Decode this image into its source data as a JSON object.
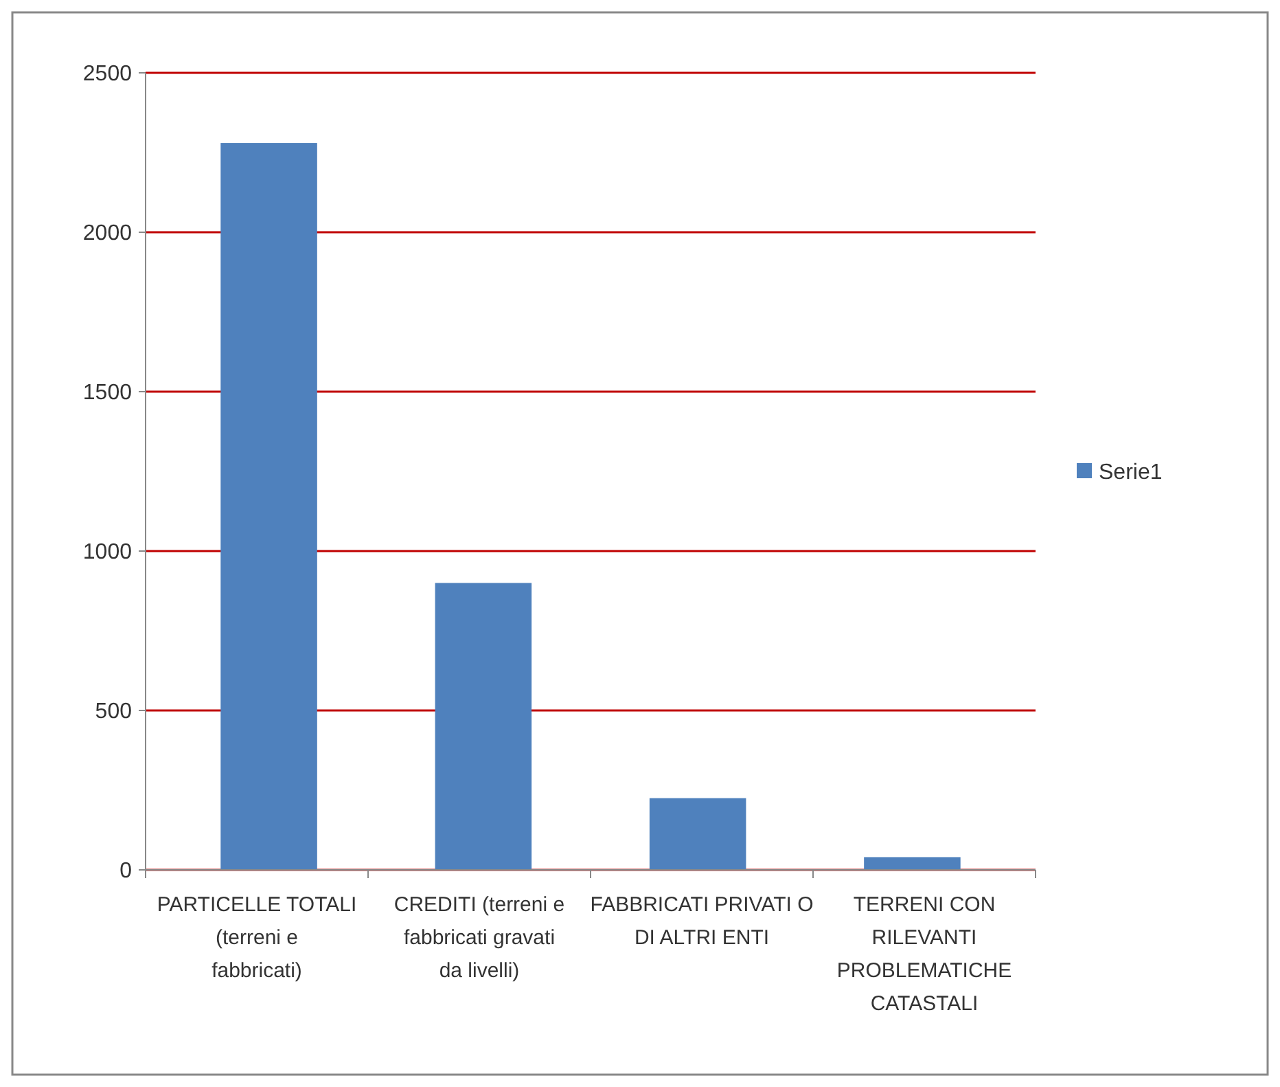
{
  "chart_data": {
    "type": "bar",
    "categories": [
      "PARTICELLE TOTALI (terreni e fabbricati)",
      "CREDITI (terreni e fabbricati gravati da livelli)",
      "FABBRICATI PRIVATI O DI ALTRI ENTI",
      "TERRENI CON RILEVANTI PROBLEMATICHE CATASTALI"
    ],
    "series": [
      {
        "name": "Serie1",
        "color": "#4f81bd",
        "values": [
          2280,
          900,
          225,
          40
        ]
      }
    ],
    "ylim": [
      0,
      2500
    ],
    "yticks": [
      0,
      500,
      1000,
      1500,
      2000,
      2500
    ],
    "grid": "y",
    "legend": "right"
  }
}
